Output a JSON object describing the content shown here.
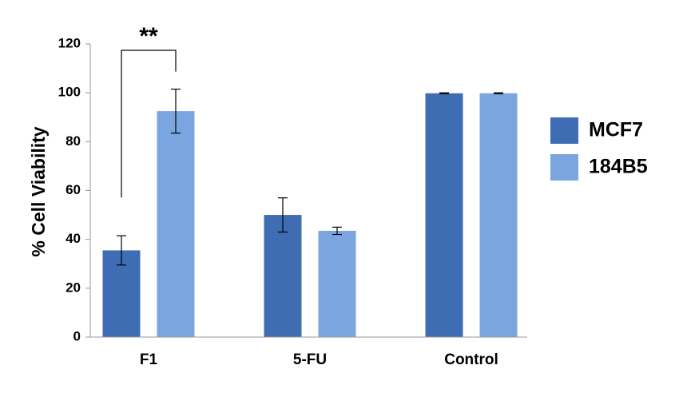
{
  "chart_data": {
    "type": "bar",
    "ylabel": "% Cell Viability",
    "xlabel": "",
    "ylim": [
      0,
      120
    ],
    "yticks": [
      0,
      20,
      40,
      60,
      80,
      100,
      120
    ],
    "grid": false,
    "legend_position": "right",
    "categories": [
      "F1",
      "5-FU",
      "Control"
    ],
    "series": [
      {
        "name": "MCF7",
        "color": "#3f6db3",
        "values": [
          35.5,
          50,
          99.8
        ],
        "errors": [
          6,
          7,
          0.2
        ]
      },
      {
        "name": "184B5",
        "color": "#7ba5de",
        "values": [
          92.5,
          43.5,
          99.8
        ],
        "errors": [
          9,
          1.5,
          0.2
        ]
      }
    ],
    "annotations": [
      {
        "text": "**",
        "category": "F1",
        "between_series": [
          0,
          1
        ]
      }
    ]
  }
}
